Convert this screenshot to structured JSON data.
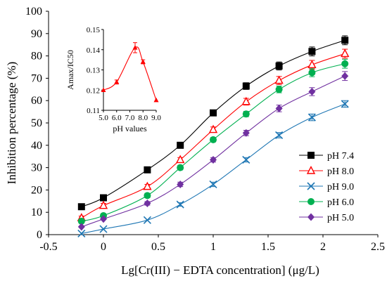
{
  "chart_data": [
    {
      "type": "line",
      "xlabel": "Lg[Cr(III) − EDTA concentration] (μg/L)",
      "ylabel": "Inhibition percentage (%)",
      "xlim": [
        -0.5,
        2.5
      ],
      "ylim": [
        0,
        100
      ],
      "xticks": [
        "-0.5",
        "0",
        "0.5",
        "1",
        "1.5",
        "2",
        "2.5"
      ],
      "yticks": [
        "0",
        "10",
        "20",
        "30",
        "40",
        "50",
        "60",
        "70",
        "80",
        "90",
        "100"
      ],
      "x": [
        -0.2,
        0,
        0.4,
        0.7,
        1.0,
        1.3,
        1.6,
        1.9,
        2.2
      ],
      "grid": false,
      "legend": "right",
      "series": [
        {
          "name": "pH 7.4",
          "marker": "square",
          "color": "#000000",
          "values": [
            12.5,
            16.5,
            29,
            40,
            54.5,
            66.5,
            75.5,
            82,
            87
          ],
          "errors": [
            1,
            1.2,
            1,
            1,
            1,
            1.5,
            1.8,
            2,
            2
          ]
        },
        {
          "name": "pH 8.0",
          "marker": "triangle",
          "color": "#ff0000",
          "values": [
            7.5,
            13,
            21.5,
            33.5,
            47,
            59.5,
            69,
            76,
            81
          ],
          "errors": [
            0.8,
            1,
            1,
            1,
            1.2,
            1.5,
            1.8,
            2,
            2
          ]
        },
        {
          "name": "pH 9.0",
          "marker": "x",
          "color": "#1f77b4",
          "values": [
            0.5,
            2.5,
            6.5,
            13.5,
            22.5,
            33.5,
            44.5,
            52.5,
            58.5
          ],
          "errors": [
            0.5,
            0.5,
            0.6,
            0.8,
            1,
            1,
            1.2,
            1.5,
            1.5
          ]
        },
        {
          "name": "pH 6.0",
          "marker": "circle",
          "color": "#00b050",
          "values": [
            6,
            8.5,
            17.5,
            30,
            42.5,
            54,
            65,
            72.5,
            76.5
          ],
          "errors": [
            0.8,
            0.8,
            1,
            1,
            1,
            1.2,
            1.5,
            1.8,
            2
          ]
        },
        {
          "name": "pH 5.0",
          "marker": "diamond",
          "color": "#7030a0",
          "values": [
            3.5,
            7,
            14,
            22.5,
            33.5,
            45.5,
            56.5,
            64,
            71
          ],
          "errors": [
            0.5,
            0.6,
            0.8,
            1,
            1,
            1.2,
            1.5,
            1.8,
            2
          ]
        }
      ]
    },
    {
      "type": "line",
      "xlabel": "pH values",
      "ylabel": "Amax/IC50",
      "xticks": [
        "5.0",
        "6.0",
        "7.0",
        "8.0",
        "9.0"
      ],
      "yticks": [
        "0.11",
        "0.12",
        "0.13",
        "0.14",
        "0.15"
      ],
      "xlim": [
        5.0,
        9.0
      ],
      "ylim": [
        0.11,
        0.15
      ],
      "x": [
        5.0,
        6.0,
        7.4,
        8.0,
        9.0
      ],
      "color": "#ff0000",
      "marker": "triangle",
      "values": [
        0.12,
        0.124,
        0.141,
        0.134,
        0.115
      ],
      "errors": [
        0.0005,
        0.001,
        0.0025,
        0.001,
        0.0005
      ]
    }
  ]
}
